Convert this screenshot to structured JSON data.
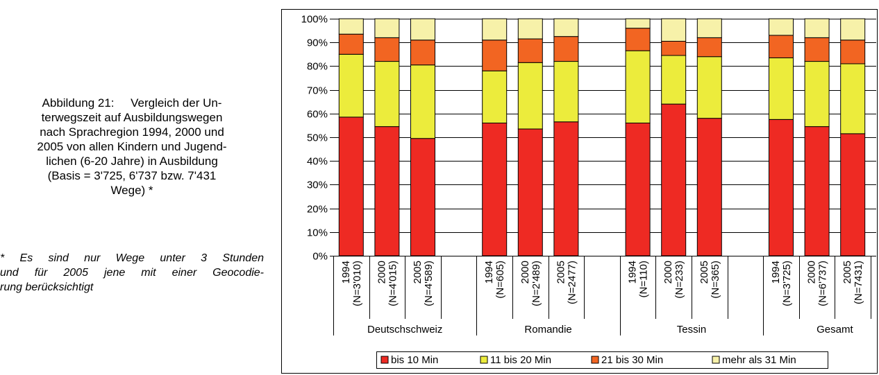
{
  "caption": {
    "lines": [
      "Abbildung 21:     Vergleich der Un-",
      "terwegszeit auf Ausbildungswegen",
      "nach Sprachregion 1994, 2000 und",
      "2005 von allen Kindern und Jugend-",
      "lichen (6-20 Jahre) in Ausbildung",
      "(Basis = 3'725, 6'737 bzw. 7'431",
      "Wege) *"
    ]
  },
  "footnote": {
    "lines": [
      "* Es sind nur Wege unter 3 Stunden",
      "und für 2005 jene mit einer Geocodie-",
      "rung berücksichtigt"
    ]
  },
  "chart_data": {
    "type": "bar",
    "stacked": true,
    "percent": true,
    "ylim": [
      0,
      100
    ],
    "y_ticks": [
      "0%",
      "10%",
      "20%",
      "30%",
      "40%",
      "50%",
      "60%",
      "70%",
      "80%",
      "90%",
      "100%"
    ],
    "groups": [
      {
        "name": "Deutschschweiz",
        "bars": [
          {
            "year": "1994",
            "n": "(N=3'010)"
          },
          {
            "year": "2000",
            "n": "(N=4'015)"
          },
          {
            "year": "2005",
            "n": "(N=4'589)"
          }
        ]
      },
      {
        "name": "Romandie",
        "bars": [
          {
            "year": "1994",
            "n": "(N=605)"
          },
          {
            "year": "2000",
            "n": "(N=2'489)"
          },
          {
            "year": "2005",
            "n": "(N=2477)"
          }
        ]
      },
      {
        "name": "Tessin",
        "bars": [
          {
            "year": "1994",
            "n": "(N=110)"
          },
          {
            "year": "2000",
            "n": "(N=233)"
          },
          {
            "year": "2005",
            "n": "(N=365)"
          }
        ]
      },
      {
        "name": "Gesamt",
        "bars": [
          {
            "year": "1994",
            "n": "(N=3'725)"
          },
          {
            "year": "2000",
            "n": "(N=6'737)"
          },
          {
            "year": "2005",
            "n": "(N=7431)"
          }
        ]
      }
    ],
    "series": [
      {
        "name": "bis 10 Min",
        "color": "#ee2a23",
        "values": [
          58.5,
          54.5,
          49.5,
          56,
          53.5,
          56.5,
          56,
          64,
          58,
          57.5,
          54.5,
          51.5
        ]
      },
      {
        "name": "11 bis 20 Min",
        "color": "#ecec3c",
        "values": [
          26.5,
          27.5,
          31,
          22,
          28,
          25.5,
          30.5,
          20.5,
          26,
          26,
          27.5,
          29.5
        ]
      },
      {
        "name": "21 bis 30 Min",
        "color": "#f26522",
        "values": [
          8.5,
          10,
          10.5,
          13,
          10,
          10.5,
          9.5,
          6,
          8,
          9.5,
          10,
          10
        ]
      },
      {
        "name": "mehr als 31 Min",
        "color": "#f7f1a9",
        "values": [
          6.5,
          8,
          9,
          9,
          8.5,
          7.5,
          4,
          9.5,
          8,
          7,
          8,
          9
        ]
      }
    ],
    "legend_position": "bottom",
    "grid": true
  }
}
